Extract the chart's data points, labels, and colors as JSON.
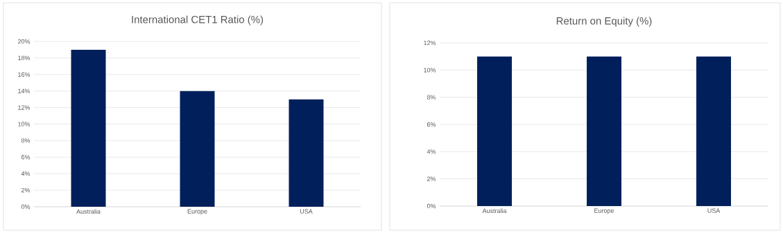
{
  "chart_data": [
    {
      "type": "bar",
      "title": "International CET1 Ratio (%)",
      "categories": [
        "Australia",
        "Europe",
        "USA"
      ],
      "values": [
        19,
        14,
        13
      ],
      "color": "#001f5b",
      "ylim": [
        0,
        20
      ],
      "yticks": [
        {
          "value": 0,
          "label": "0%"
        },
        {
          "value": 2,
          "label": "2%"
        },
        {
          "value": 4,
          "label": "4%"
        },
        {
          "value": 6,
          "label": "6%"
        },
        {
          "value": 8,
          "label": "8%"
        },
        {
          "value": 10,
          "label": "10%"
        },
        {
          "value": 12,
          "label": "12%"
        },
        {
          "value": 14,
          "label": "14%"
        },
        {
          "value": 16,
          "label": "16%"
        },
        {
          "value": 18,
          "label": "18%"
        },
        {
          "value": 20,
          "label": "20%"
        }
      ],
      "grid": "y"
    },
    {
      "type": "bar",
      "title": "Return on Equity (%)",
      "categories": [
        "Australia",
        "Europe",
        "USA"
      ],
      "values": [
        11,
        11,
        11
      ],
      "color": "#001f5b",
      "ylim": [
        0,
        12
      ],
      "yticks": [
        {
          "value": 0,
          "label": "0%"
        },
        {
          "value": 2,
          "label": "2%"
        },
        {
          "value": 4,
          "label": "4%"
        },
        {
          "value": 6,
          "label": "6%"
        },
        {
          "value": 8,
          "label": "8%"
        },
        {
          "value": 10,
          "label": "10%"
        },
        {
          "value": 12,
          "label": "12%"
        }
      ],
      "grid": "y"
    }
  ]
}
